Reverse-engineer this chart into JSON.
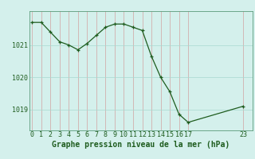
{
  "x": [
    0,
    1,
    2,
    3,
    4,
    5,
    6,
    7,
    8,
    9,
    10,
    11,
    12,
    13,
    14,
    15,
    16,
    17,
    23
  ],
  "y": [
    1021.7,
    1021.7,
    1021.4,
    1021.1,
    1021.0,
    1020.85,
    1021.05,
    1021.3,
    1021.55,
    1021.65,
    1021.65,
    1021.55,
    1021.45,
    1020.65,
    1020.0,
    1019.55,
    1018.85,
    1018.6,
    1019.1
  ],
  "line_color": "#1e5c1e",
  "marker_color": "#1e5c1e",
  "bg_color": "#d4f0ec",
  "grid_color": "#a8d8d0",
  "xlabel": "Graphe pression niveau de la mer (hPa)",
  "yticks": [
    1019,
    1020,
    1021
  ],
  "xticks": [
    0,
    1,
    2,
    3,
    4,
    5,
    6,
    7,
    8,
    9,
    10,
    11,
    12,
    13,
    14,
    15,
    16,
    17,
    23
  ],
  "xlim": [
    -0.3,
    24.0
  ],
  "ylim": [
    1018.35,
    1022.05
  ],
  "xlabel_fontsize": 7.0,
  "tick_fontsize": 6.0,
  "label_color": "#1e5c1e",
  "border_color": "#5a9a7a"
}
